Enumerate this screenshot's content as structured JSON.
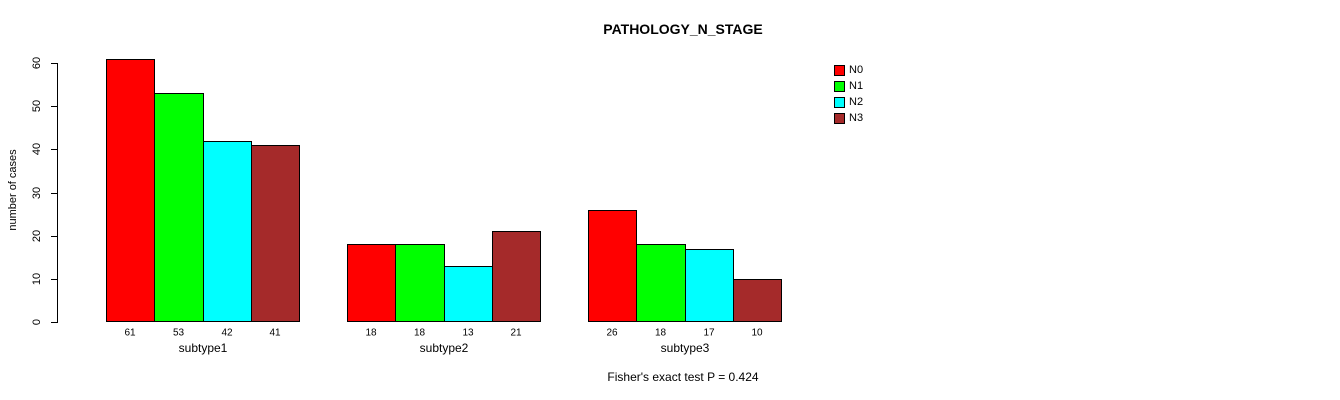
{
  "chart_data": {
    "type": "bar",
    "title": "PATHOLOGY_N_STAGE",
    "ylabel": "number of cases",
    "xlabel": "",
    "annotation": "Fisher's exact test P = 0.424",
    "categories": [
      "subtype1",
      "subtype2",
      "subtype3"
    ],
    "series": [
      {
        "name": "N0",
        "color": "#FF0000",
        "values": [
          61,
          18,
          26
        ]
      },
      {
        "name": "N1",
        "color": "#00FF00",
        "values": [
          53,
          18,
          18
        ]
      },
      {
        "name": "N2",
        "color": "#00FFFF",
        "values": [
          42,
          13,
          17
        ]
      },
      {
        "name": "N3",
        "color": "#A52A2A",
        "values": [
          41,
          21,
          10
        ]
      }
    ],
    "yticks": [
      0,
      10,
      20,
      30,
      40,
      50,
      60
    ],
    "ylim": [
      0,
      60
    ],
    "bar_value_labels": true,
    "legend_position": "top-right",
    "grid": false,
    "axis_color": "#000000",
    "background_color": "#FFFFFF"
  }
}
